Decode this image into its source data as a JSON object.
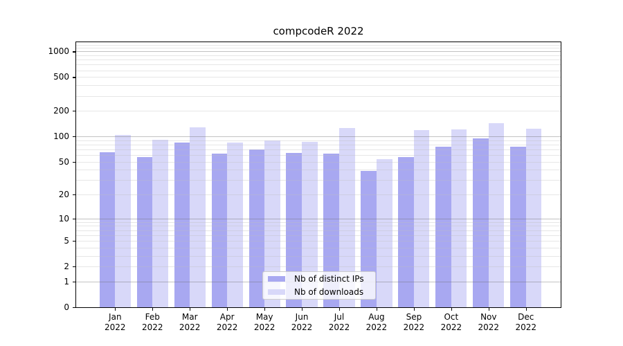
{
  "chart_data": {
    "type": "bar",
    "title": "compcodeR 2022",
    "year_label": "2022",
    "categories": [
      "Jan",
      "Feb",
      "Mar",
      "Apr",
      "May",
      "Jun",
      "Jul",
      "Aug",
      "Sep",
      "Oct",
      "Nov",
      "Dec"
    ],
    "series": [
      {
        "name": "Nb of distinct IPs",
        "color": "#a8a8f1",
        "values": [
          65,
          57,
          85,
          62,
          70,
          64,
          62,
          39,
          57,
          76,
          95,
          76
        ]
      },
      {
        "name": "Nb of downloads",
        "color": "#d8d8f9",
        "values": [
          104,
          91,
          128,
          85,
          89,
          86,
          126,
          54,
          119,
          121,
          144,
          123
        ]
      }
    ],
    "y_axis": {
      "scale": "log1p",
      "tick_values": [
        0,
        1,
        2,
        5,
        10,
        20,
        50,
        100,
        200,
        500,
        1000
      ],
      "tick_labels": [
        "0",
        "1",
        "2",
        "5",
        "10",
        "20",
        "50",
        "100",
        "200",
        "500",
        "1000"
      ],
      "ylim": [
        0,
        1284
      ]
    },
    "grid": {
      "major_lines": [
        1,
        10,
        100,
        1000
      ],
      "minor_multiples": [
        2,
        3,
        4,
        5,
        6,
        7,
        8,
        9
      ],
      "minor_extra": [
        1100,
        1200
      ]
    },
    "legend": {
      "position": "lower center",
      "entries": [
        "Nb of distinct IPs",
        "Nb of downloads"
      ]
    },
    "colors": {
      "major_grid": "#c4c4c4",
      "minor_grid": "#ebebeb",
      "axis": "#000000",
      "background": "#ffffff"
    }
  }
}
